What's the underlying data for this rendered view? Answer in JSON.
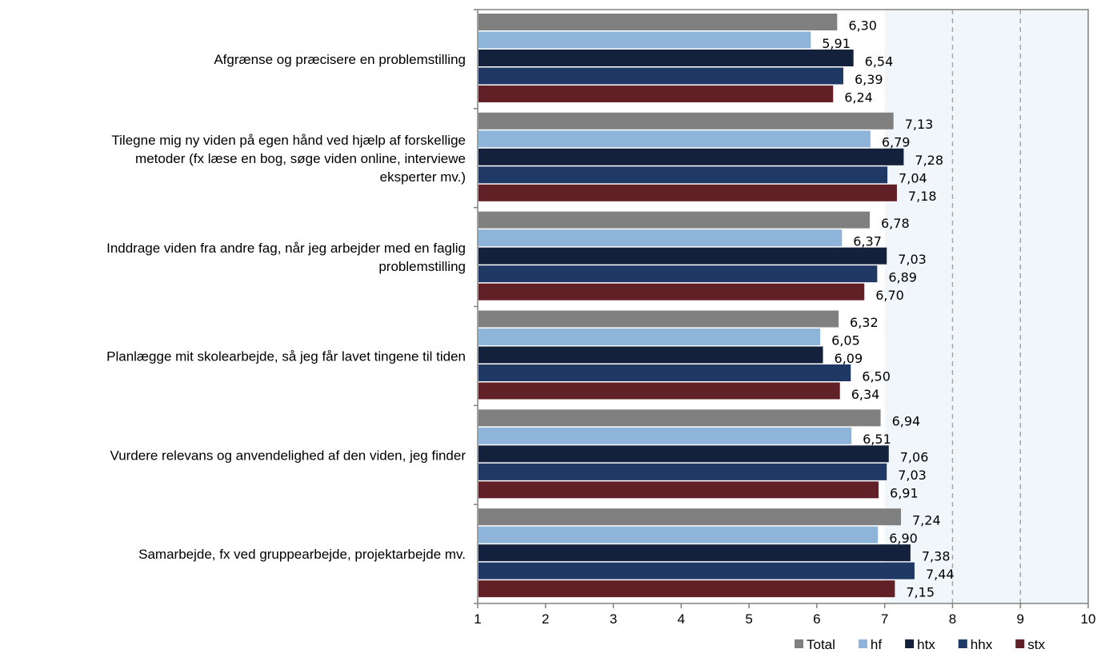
{
  "chart_data": {
    "type": "bar",
    "orientation": "horizontal",
    "categories": [
      [
        "Afgrænse og præcisere en problemstilling"
      ],
      [
        "Tilegne mig ny viden på egen hånd ved hjælp af forskellige",
        "metoder (fx læse en bog, søge viden online, interviewe",
        "eksperter mv.)"
      ],
      [
        "Inddrage viden fra andre fag, når jeg arbejder med en faglig",
        "problemstilling"
      ],
      [
        "Planlægge mit skolearbejde, så jeg får lavet tingene til tiden"
      ],
      [
        "Vurdere relevans og anvendelighed af den viden, jeg finder"
      ],
      [
        "Samarbejde, fx ved gruppearbejde, projektarbejde mv."
      ]
    ],
    "series": [
      {
        "name": "Total",
        "color": "#808080",
        "values": [
          6.3,
          7.13,
          6.78,
          6.32,
          6.94,
          7.24
        ],
        "labels": [
          "6,30",
          "7,13",
          "6,78",
          "6,32",
          "6,94",
          "7,24"
        ]
      },
      {
        "name": "hf",
        "color": "#8EB4D9",
        "values": [
          5.91,
          6.79,
          6.37,
          6.05,
          6.51,
          6.9
        ],
        "labels": [
          "5,91",
          "6,79",
          "6,37",
          "6,05",
          "6,51",
          "6,90"
        ]
      },
      {
        "name": "htx",
        "color": "#14213D",
        "values": [
          6.54,
          7.28,
          7.03,
          6.09,
          7.06,
          7.38
        ],
        "labels": [
          "6,54",
          "7,28",
          "7,03",
          "6,09",
          "7,06",
          "7,38"
        ]
      },
      {
        "name": "hhx",
        "color": "#1F3864",
        "values": [
          6.39,
          7.04,
          6.89,
          6.5,
          7.03,
          7.44
        ],
        "labels": [
          "6,39",
          "7,04",
          "6,89",
          "6,50",
          "7,03",
          "7,44"
        ]
      },
      {
        "name": "stx",
        "color": "#611F26",
        "values": [
          6.24,
          7.18,
          6.7,
          6.34,
          6.91,
          7.15
        ],
        "labels": [
          "6,24",
          "7,18",
          "6,70",
          "6,34",
          "6,91",
          "7,15"
        ]
      }
    ],
    "xlim": [
      1,
      10
    ],
    "xticks": [
      "1",
      "2",
      "3",
      "4",
      "5",
      "6",
      "7",
      "8",
      "9",
      "10"
    ],
    "grid": "vertical dashed lines at 8 and 9",
    "shaded_region": [
      7,
      10
    ],
    "shaded_color": "#F1F6FA",
    "legend_position": "bottom-right"
  }
}
